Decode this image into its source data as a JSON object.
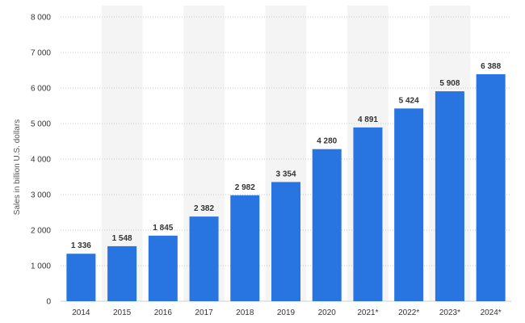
{
  "chart_data": {
    "type": "bar",
    "categories": [
      "2014",
      "2015",
      "2016",
      "2017",
      "2018",
      "2019",
      "2020",
      "2021*",
      "2022*",
      "2023*",
      "2024*"
    ],
    "values": [
      1336,
      1548,
      1845,
      2382,
      2982,
      3354,
      4280,
      4891,
      5424,
      5908,
      6388
    ],
    "data_labels": [
      "1 336",
      "1 548",
      "1 845",
      "2 382",
      "2 982",
      "3 354",
      "4 280",
      "4 891",
      "5 424",
      "5 908",
      "6 388"
    ],
    "title": "",
    "xlabel": "",
    "ylabel": "Sales in billion U.S. dollars",
    "ylim": [
      0,
      8000
    ],
    "yticks": [
      0,
      1000,
      2000,
      3000,
      4000,
      5000,
      6000,
      7000,
      8000
    ],
    "ytick_labels": [
      "0",
      "1 000",
      "2 000",
      "3 000",
      "4 000",
      "5 000",
      "6 000",
      "7 000",
      "8 000"
    ],
    "grid": true,
    "grid_style": "dotted horizontal",
    "alternating_column_bands": true,
    "legend": "none",
    "colors": {
      "bar": "#2874e0",
      "band": "#f4f4f4",
      "grid": "#c8c8c8",
      "text": "#333333"
    }
  }
}
